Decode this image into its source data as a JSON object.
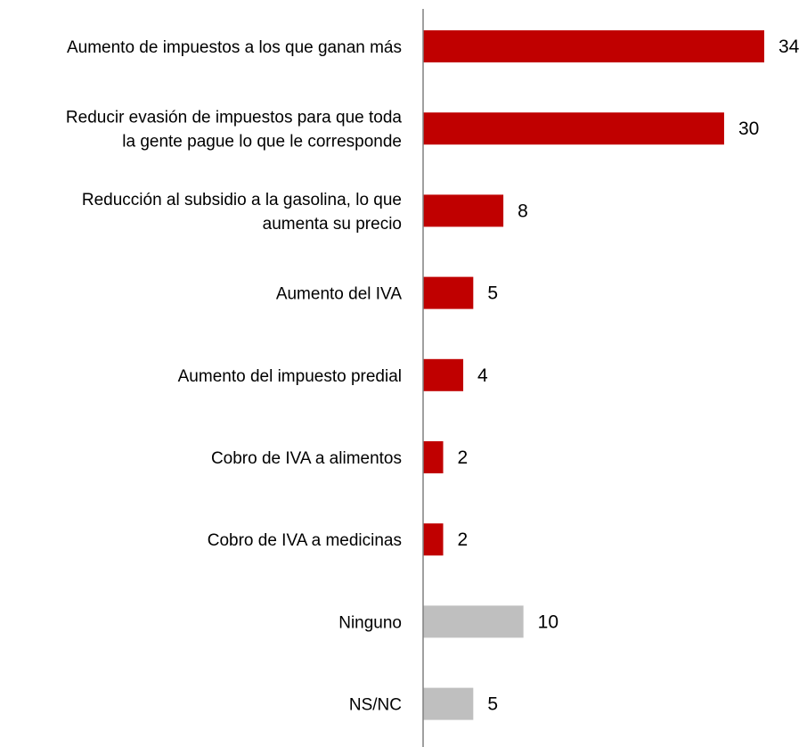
{
  "chart_data": {
    "type": "bar",
    "orientation": "horizontal",
    "title": "",
    "xlabel": "",
    "ylabel": "",
    "xlim": [
      0,
      34
    ],
    "grid": false,
    "categories": [
      [
        "Aumento de impuestos a los que ganan más"
      ],
      [
        "Reducir evasión de impuestos para que toda",
        "la gente pague lo que le corresponde"
      ],
      [
        "Reducción al subsidio a la gasolina, lo que",
        "aumenta su precio"
      ],
      [
        "Aumento del IVA"
      ],
      [
        "Aumento del impuesto predial"
      ],
      [
        "Cobro de IVA a alimentos"
      ],
      [
        "Cobro de IVA a medicinas"
      ],
      [
        "Ninguno"
      ],
      [
        "NS/NC"
      ]
    ],
    "values": [
      34,
      30,
      8,
      5,
      4,
      2,
      2,
      10,
      5
    ],
    "colors": [
      "#c00000",
      "#c00000",
      "#c00000",
      "#c00000",
      "#c00000",
      "#c00000",
      "#c00000",
      "#bfbfbf",
      "#bfbfbf"
    ],
    "axis_color": "#808080"
  }
}
